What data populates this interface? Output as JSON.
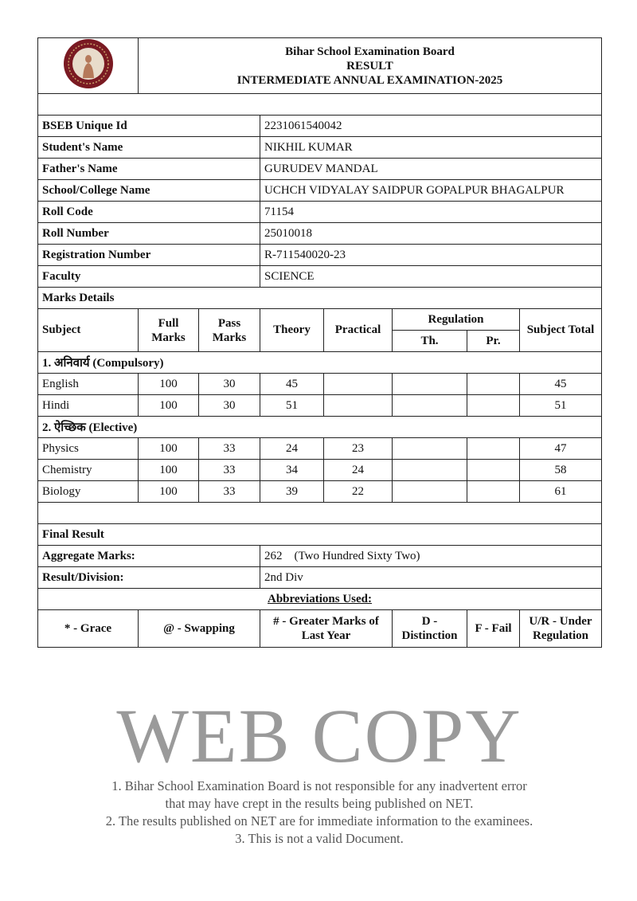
{
  "header": {
    "board": "Bihar School Examination Board",
    "doc": "RESULT",
    "exam": "INTERMEDIATE ANNUAL EXAMINATION-2025",
    "logo": "bseb-seal-logo"
  },
  "student": [
    {
      "label": "BSEB Unique Id",
      "value": "2231061540042"
    },
    {
      "label": "Student's Name",
      "value": "NIKHIL KUMAR"
    },
    {
      "label": "Father's Name",
      "value": "GURUDEV MANDAL"
    },
    {
      "label": "School/College Name",
      "value": "UCHCH VIDYALAY SAIDPUR GOPALPUR BHAGALPUR"
    },
    {
      "label": "Roll Code",
      "value": "71154"
    },
    {
      "label": "Roll Number",
      "value": "25010018"
    },
    {
      "label": "Registration Number",
      "value": "R-711540020-23"
    },
    {
      "label": "Faculty",
      "value": "SCIENCE"
    }
  ],
  "marks": {
    "title": "Marks Details",
    "headers": {
      "subject": "Subject",
      "full": "Full Marks",
      "pass": "Pass Marks",
      "theory": "Theory",
      "practical": "Practical",
      "regulation": "Regulation",
      "th": "Th.",
      "pr": "Pr.",
      "total": "Subject Total"
    },
    "sections": [
      {
        "title": "1. अनिवार्य (Compulsory)",
        "rows": [
          {
            "subject": "English",
            "full": "100",
            "pass": "30",
            "theory": "45",
            "practical": "",
            "th": "",
            "pr": "",
            "total": "45"
          },
          {
            "subject": "Hindi",
            "full": "100",
            "pass": "30",
            "theory": "51",
            "practical": "",
            "th": "",
            "pr": "",
            "total": "51"
          }
        ]
      },
      {
        "title": "2. ऐच्छिक (Elective)",
        "rows": [
          {
            "subject": "Physics",
            "full": "100",
            "pass": "33",
            "theory": "24",
            "practical": "23",
            "th": "",
            "pr": "",
            "total": "47"
          },
          {
            "subject": "Chemistry",
            "full": "100",
            "pass": "33",
            "theory": "34",
            "practical": "24",
            "th": "",
            "pr": "",
            "total": "58"
          },
          {
            "subject": "Biology",
            "full": "100",
            "pass": "33",
            "theory": "39",
            "practical": "22",
            "th": "",
            "pr": "",
            "total": "61"
          }
        ]
      }
    ]
  },
  "final": {
    "title": "Final Result",
    "aggregate_label": "Aggregate Marks:",
    "aggregate_value": "262",
    "aggregate_words": "(Two Hundred Sixty Two)",
    "division_label": "Result/Division:",
    "division_value": "2nd Div"
  },
  "abbreviations": {
    "title": "Abbreviations Used:",
    "items": [
      "* - Grace",
      "@ - Swapping",
      "# - Greater Marks of Last Year",
      "D - Distinction",
      "F - Fail",
      "U/R - Under Regulation"
    ]
  },
  "watermark": {
    "big": "WEB COPY",
    "lines": [
      "1. Bihar School Examination Board is not responsible for any inadvertent error",
      "that may have crept in the results being published on NET.",
      "2. The results published on NET are for immediate information to the examinees.",
      "3. This is not a valid Document."
    ]
  },
  "colors": {
    "seal": "#7a1a22",
    "border": "#222222",
    "watermark": "#8a8a8a"
  }
}
